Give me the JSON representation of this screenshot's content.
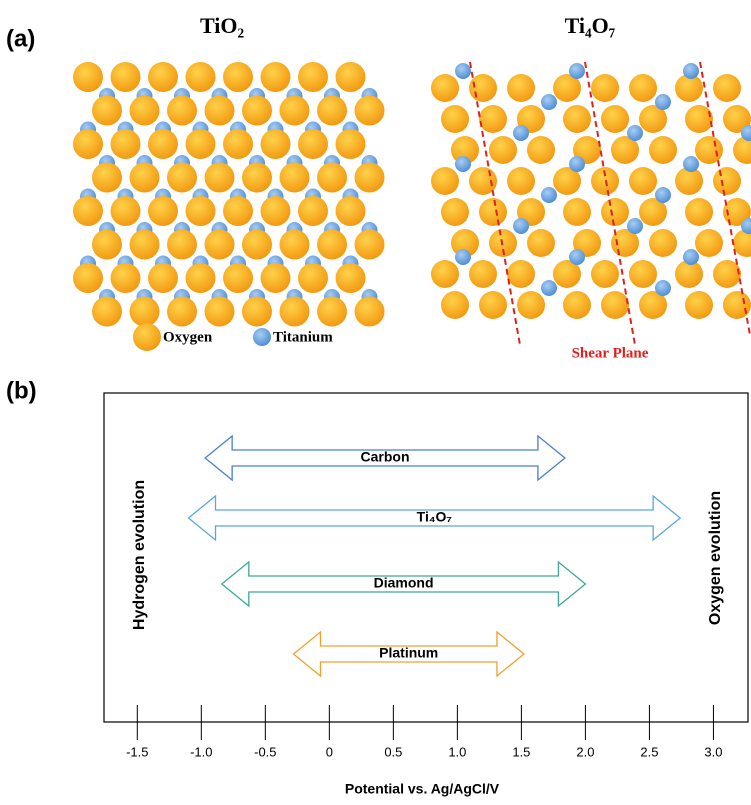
{
  "panel_a": {
    "label": "(a)",
    "titles": [
      "TiO₂",
      "Ti₄O₇"
    ],
    "legend": [
      "Oxygen",
      "Titanium"
    ],
    "annotation": "Shear Plane"
  },
  "chart_data": {
    "type": "range",
    "panel_label": "(b)",
    "x_label": "Potential vs. Ag/AgCl/V",
    "left_label": "Hydrogen evolution",
    "right_label": "Oxygen evolution",
    "xlim": [
      -1.76,
      3.27
    ],
    "xticks": [
      -1.5,
      {
        "value": -1.0,
        "label": "-1.0"
      },
      -0.5,
      0,
      0.5,
      {
        "value": 1.0,
        "label": "1.0"
      },
      1.5,
      {
        "value": 2.0,
        "label": "2.0"
      },
      2.5,
      {
        "value": 3.0,
        "label": "3.0"
      }
    ],
    "series": [
      {
        "name": "Carbon",
        "color": "#4a7fc8",
        "values": [
          -0.97,
          1.84
        ]
      },
      {
        "name": "Ti₄O₇",
        "color": "#5aa8d8",
        "values": [
          -1.1,
          2.74
        ]
      },
      {
        "name": "Diamond",
        "color": "#3fa898",
        "values": [
          -0.84,
          2.0
        ]
      },
      {
        "name": "Platinum",
        "color": "#f0a030",
        "values": [
          -0.28,
          1.52
        ]
      }
    ]
  }
}
